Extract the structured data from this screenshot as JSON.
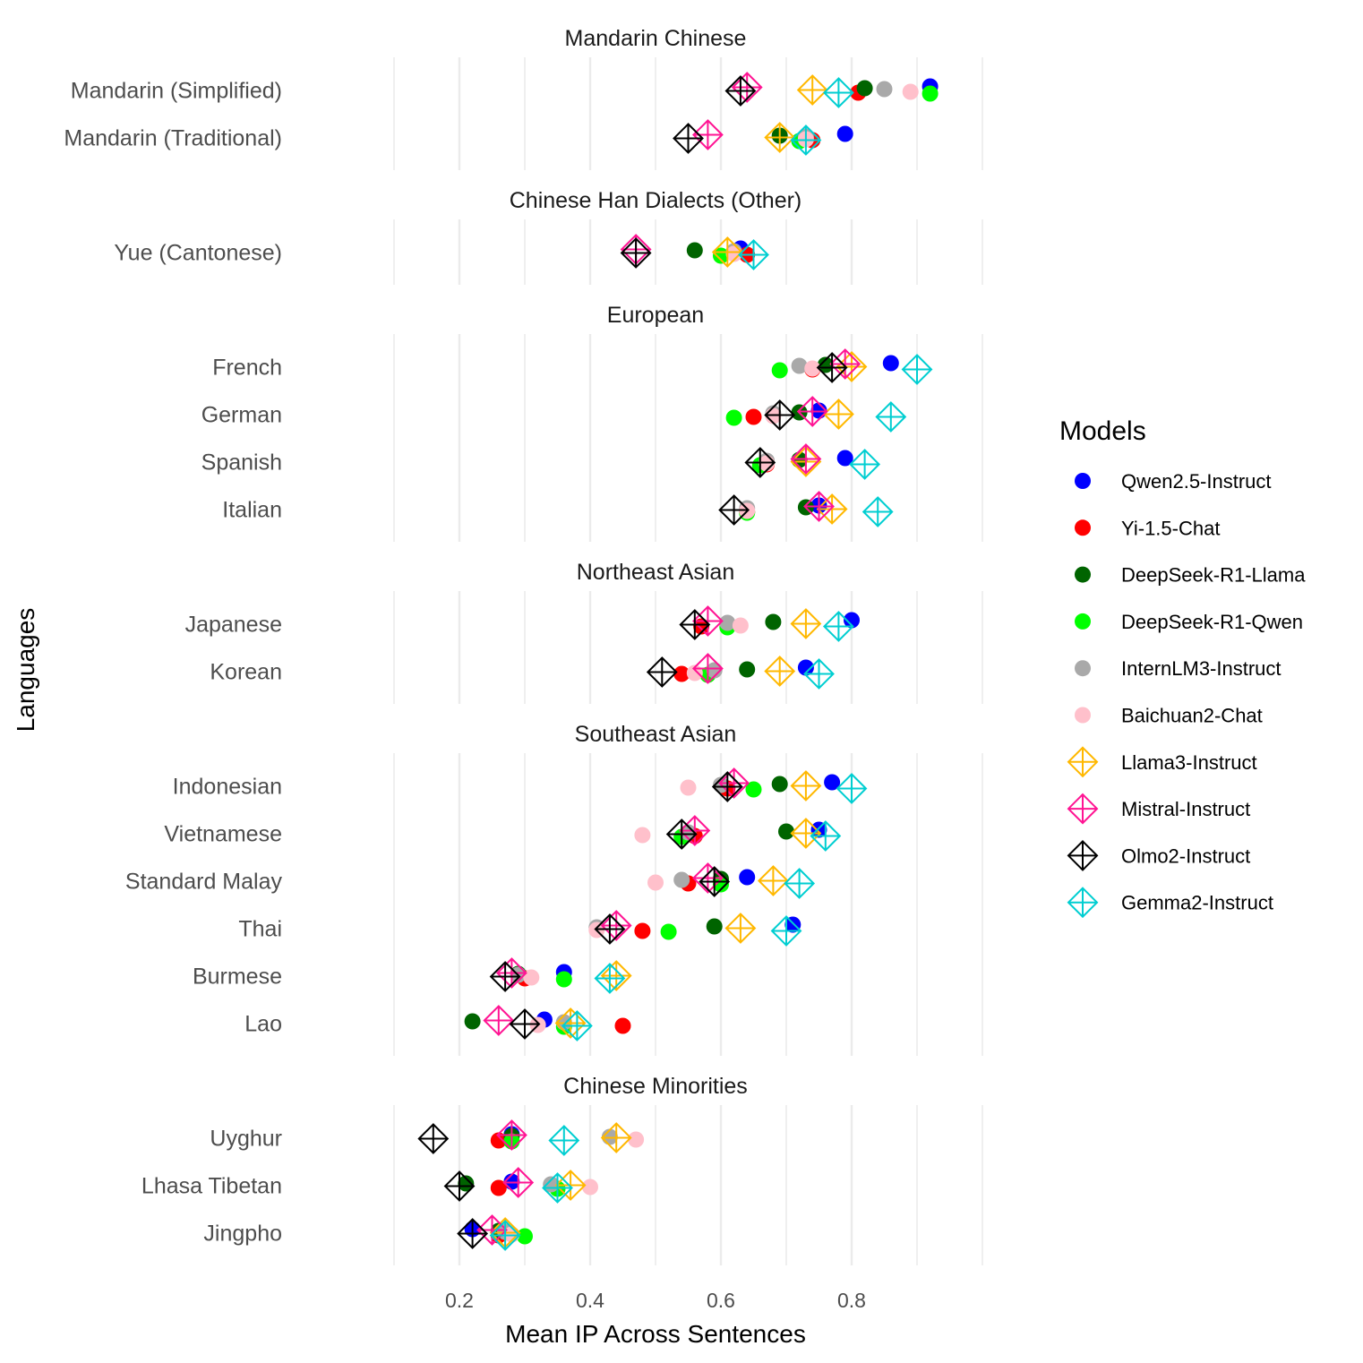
{
  "chart_data": {
    "type": "scatter",
    "xlabel": "Mean IP Across Sentences",
    "ylabel": "Languages",
    "xlim": [
      0.0,
      1.0
    ],
    "xticks": [
      0.2,
      0.4,
      0.6,
      0.8
    ],
    "xtick_labels": [
      "0.2",
      "0.4",
      "0.6",
      "0.8"
    ],
    "grid": true,
    "legend": {
      "title": "Models",
      "position": "right"
    },
    "series": [
      {
        "name": "Qwen2.5-Instruct",
        "color": "#0000ff",
        "marker": "circle"
      },
      {
        "name": "Yi-1.5-Chat",
        "color": "#ff0000",
        "marker": "circle"
      },
      {
        "name": "DeepSeek-R1-Llama",
        "color": "#006400",
        "marker": "circle"
      },
      {
        "name": "DeepSeek-R1-Qwen",
        "color": "#00ff00",
        "marker": "circle"
      },
      {
        "name": "InternLM3-Instruct",
        "color": "#a9a9a9",
        "marker": "circle"
      },
      {
        "name": "Baichuan2-Chat",
        "color": "#ffc0cb",
        "marker": "circle"
      },
      {
        "name": "Llama3-Instruct",
        "color": "#ffb800",
        "marker": "diamond-plus"
      },
      {
        "name": "Mistral-Instruct",
        "color": "#ff1493",
        "marker": "diamond-plus"
      },
      {
        "name": "Olmo2-Instruct",
        "color": "#000000",
        "marker": "diamond-plus"
      },
      {
        "name": "Gemma2-Instruct",
        "color": "#00ced1",
        "marker": "diamond-plus"
      }
    ],
    "panels": [
      {
        "title": "Mandarin Chinese",
        "languages": [
          {
            "name": "Mandarin (Simplified)",
            "values": {
              "Qwen2.5-Instruct": 0.92,
              "Yi-1.5-Chat": 0.81,
              "DeepSeek-R1-Llama": 0.82,
              "DeepSeek-R1-Qwen": 0.92,
              "InternLM3-Instruct": 0.85,
              "Baichuan2-Chat": 0.89,
              "Llama3-Instruct": 0.74,
              "Mistral-Instruct": 0.64,
              "Olmo2-Instruct": 0.63,
              "Gemma2-Instruct": 0.78
            }
          },
          {
            "name": "Mandarin (Traditional)",
            "values": {
              "Qwen2.5-Instruct": 0.79,
              "Yi-1.5-Chat": 0.74,
              "DeepSeek-R1-Llama": 0.69,
              "DeepSeek-R1-Qwen": 0.72,
              "InternLM3-Instruct": 0.73,
              "Baichuan2-Chat": 0.73,
              "Llama3-Instruct": 0.69,
              "Mistral-Instruct": 0.58,
              "Olmo2-Instruct": 0.55,
              "Gemma2-Instruct": 0.73
            }
          }
        ]
      },
      {
        "title": "Chinese Han Dialects (Other)",
        "languages": [
          {
            "name": "Yue (Cantonese)",
            "values": {
              "Qwen2.5-Instruct": 0.63,
              "Yi-1.5-Chat": 0.64,
              "DeepSeek-R1-Llama": 0.56,
              "DeepSeek-R1-Qwen": 0.6,
              "InternLM3-Instruct": 0.62,
              "Baichuan2-Chat": 0.62,
              "Llama3-Instruct": 0.61,
              "Mistral-Instruct": 0.47,
              "Olmo2-Instruct": 0.47,
              "Gemma2-Instruct": 0.65
            }
          }
        ]
      },
      {
        "title": "European",
        "languages": [
          {
            "name": "French",
            "values": {
              "Qwen2.5-Instruct": 0.86,
              "Yi-1.5-Chat": 0.74,
              "DeepSeek-R1-Llama": 0.76,
              "DeepSeek-R1-Qwen": 0.69,
              "InternLM3-Instruct": 0.72,
              "Baichuan2-Chat": 0.74,
              "Llama3-Instruct": 0.8,
              "Mistral-Instruct": 0.79,
              "Olmo2-Instruct": 0.77,
              "Gemma2-Instruct": 0.9
            }
          },
          {
            "name": "German",
            "values": {
              "Qwen2.5-Instruct": 0.75,
              "Yi-1.5-Chat": 0.65,
              "DeepSeek-R1-Llama": 0.72,
              "DeepSeek-R1-Qwen": 0.62,
              "InternLM3-Instruct": 0.68,
              "Baichuan2-Chat": 0.68,
              "Llama3-Instruct": 0.78,
              "Mistral-Instruct": 0.74,
              "Olmo2-Instruct": 0.69,
              "Gemma2-Instruct": 0.86
            }
          },
          {
            "name": "Spanish",
            "values": {
              "Qwen2.5-Instruct": 0.79,
              "Yi-1.5-Chat": 0.67,
              "DeepSeek-R1-Llama": 0.72,
              "DeepSeek-R1-Qwen": 0.66,
              "InternLM3-Instruct": 0.67,
              "Baichuan2-Chat": 0.67,
              "Llama3-Instruct": 0.73,
              "Mistral-Instruct": 0.73,
              "Olmo2-Instruct": 0.66,
              "Gemma2-Instruct": 0.82
            }
          },
          {
            "name": "Italian",
            "values": {
              "Qwen2.5-Instruct": 0.75,
              "Yi-1.5-Chat": 0.64,
              "DeepSeek-R1-Llama": 0.73,
              "DeepSeek-R1-Qwen": 0.64,
              "InternLM3-Instruct": 0.64,
              "Baichuan2-Chat": 0.64,
              "Llama3-Instruct": 0.77,
              "Mistral-Instruct": 0.75,
              "Olmo2-Instruct": 0.62,
              "Gemma2-Instruct": 0.84
            }
          }
        ]
      },
      {
        "title": "Northeast Asian",
        "languages": [
          {
            "name": "Japanese",
            "values": {
              "Qwen2.5-Instruct": 0.8,
              "Yi-1.5-Chat": 0.57,
              "DeepSeek-R1-Llama": 0.68,
              "DeepSeek-R1-Qwen": 0.61,
              "InternLM3-Instruct": 0.61,
              "Baichuan2-Chat": 0.63,
              "Llama3-Instruct": 0.73,
              "Mistral-Instruct": 0.58,
              "Olmo2-Instruct": 0.56,
              "Gemma2-Instruct": 0.78
            }
          },
          {
            "name": "Korean",
            "values": {
              "Qwen2.5-Instruct": 0.73,
              "Yi-1.5-Chat": 0.54,
              "DeepSeek-R1-Llama": 0.64,
              "DeepSeek-R1-Qwen": 0.58,
              "InternLM3-Instruct": 0.59,
              "Baichuan2-Chat": 0.56,
              "Llama3-Instruct": 0.69,
              "Mistral-Instruct": 0.58,
              "Olmo2-Instruct": 0.51,
              "Gemma2-Instruct": 0.75
            }
          }
        ]
      },
      {
        "title": "Southeast Asian",
        "languages": [
          {
            "name": "Indonesian",
            "values": {
              "Qwen2.5-Instruct": 0.77,
              "Yi-1.5-Chat": 0.61,
              "DeepSeek-R1-Llama": 0.69,
              "DeepSeek-R1-Qwen": 0.65,
              "InternLM3-Instruct": 0.6,
              "Baichuan2-Chat": 0.55,
              "Llama3-Instruct": 0.73,
              "Mistral-Instruct": 0.62,
              "Olmo2-Instruct": 0.61,
              "Gemma2-Instruct": 0.8
            }
          },
          {
            "name": "Vietnamese",
            "values": {
              "Qwen2.5-Instruct": 0.75,
              "Yi-1.5-Chat": 0.56,
              "DeepSeek-R1-Llama": 0.7,
              "DeepSeek-R1-Qwen": 0.54,
              "InternLM3-Instruct": 0.55,
              "Baichuan2-Chat": 0.48,
              "Llama3-Instruct": 0.73,
              "Mistral-Instruct": 0.56,
              "Olmo2-Instruct": 0.54,
              "Gemma2-Instruct": 0.76
            }
          },
          {
            "name": "Standard Malay",
            "values": {
              "Qwen2.5-Instruct": 0.64,
              "Yi-1.5-Chat": 0.55,
              "DeepSeek-R1-Llama": 0.6,
              "DeepSeek-R1-Qwen": 0.6,
              "InternLM3-Instruct": 0.54,
              "Baichuan2-Chat": 0.5,
              "Llama3-Instruct": 0.68,
              "Mistral-Instruct": 0.58,
              "Olmo2-Instruct": 0.59,
              "Gemma2-Instruct": 0.72
            }
          },
          {
            "name": "Thai",
            "values": {
              "Qwen2.5-Instruct": 0.71,
              "Yi-1.5-Chat": 0.48,
              "DeepSeek-R1-Llama": 0.59,
              "DeepSeek-R1-Qwen": 0.52,
              "InternLM3-Instruct": 0.41,
              "Baichuan2-Chat": 0.41,
              "Llama3-Instruct": 0.63,
              "Mistral-Instruct": 0.44,
              "Olmo2-Instruct": 0.43,
              "Gemma2-Instruct": 0.7
            }
          },
          {
            "name": "Burmese",
            "values": {
              "Qwen2.5-Instruct": 0.36,
              "Yi-1.5-Chat": 0.3,
              "DeepSeek-R1-Llama": 0.29,
              "DeepSeek-R1-Qwen": 0.36,
              "InternLM3-Instruct": 0.29,
              "Baichuan2-Chat": 0.31,
              "Llama3-Instruct": 0.44,
              "Mistral-Instruct": 0.28,
              "Olmo2-Instruct": 0.27,
              "Gemma2-Instruct": 0.43
            }
          },
          {
            "name": "Lao",
            "values": {
              "Qwen2.5-Instruct": 0.33,
              "Yi-1.5-Chat": 0.45,
              "DeepSeek-R1-Llama": 0.22,
              "DeepSeek-R1-Qwen": 0.36,
              "InternLM3-Instruct": 0.36,
              "Baichuan2-Chat": 0.32,
              "Llama3-Instruct": 0.37,
              "Mistral-Instruct": 0.26,
              "Olmo2-Instruct": 0.3,
              "Gemma2-Instruct": 0.38
            }
          }
        ]
      },
      {
        "title": "Chinese Minorities",
        "languages": [
          {
            "name": "Uyghur",
            "values": {
              "Qwen2.5-Instruct": 0.28,
              "Yi-1.5-Chat": 0.26,
              "DeepSeek-R1-Llama": 0.28,
              "DeepSeek-R1-Qwen": 0.28,
              "InternLM3-Instruct": 0.43,
              "Baichuan2-Chat": 0.47,
              "Llama3-Instruct": 0.44,
              "Mistral-Instruct": 0.28,
              "Olmo2-Instruct": 0.16,
              "Gemma2-Instruct": 0.36
            }
          },
          {
            "name": "Lhasa Tibetan",
            "values": {
              "Qwen2.5-Instruct": 0.28,
              "Yi-1.5-Chat": 0.26,
              "DeepSeek-R1-Llama": 0.21,
              "DeepSeek-R1-Qwen": 0.35,
              "InternLM3-Instruct": 0.34,
              "Baichuan2-Chat": 0.4,
              "Llama3-Instruct": 0.37,
              "Mistral-Instruct": 0.29,
              "Olmo2-Instruct": 0.2,
              "Gemma2-Instruct": 0.35
            }
          },
          {
            "name": "Jingpho",
            "values": {
              "Qwen2.5-Instruct": 0.22,
              "Yi-1.5-Chat": 0.26,
              "DeepSeek-R1-Llama": 0.26,
              "DeepSeek-R1-Qwen": 0.3,
              "InternLM3-Instruct": 0.27,
              "Baichuan2-Chat": 0.28,
              "Llama3-Instruct": 0.27,
              "Mistral-Instruct": 0.25,
              "Olmo2-Instruct": 0.22,
              "Gemma2-Instruct": 0.27
            }
          }
        ]
      }
    ]
  }
}
